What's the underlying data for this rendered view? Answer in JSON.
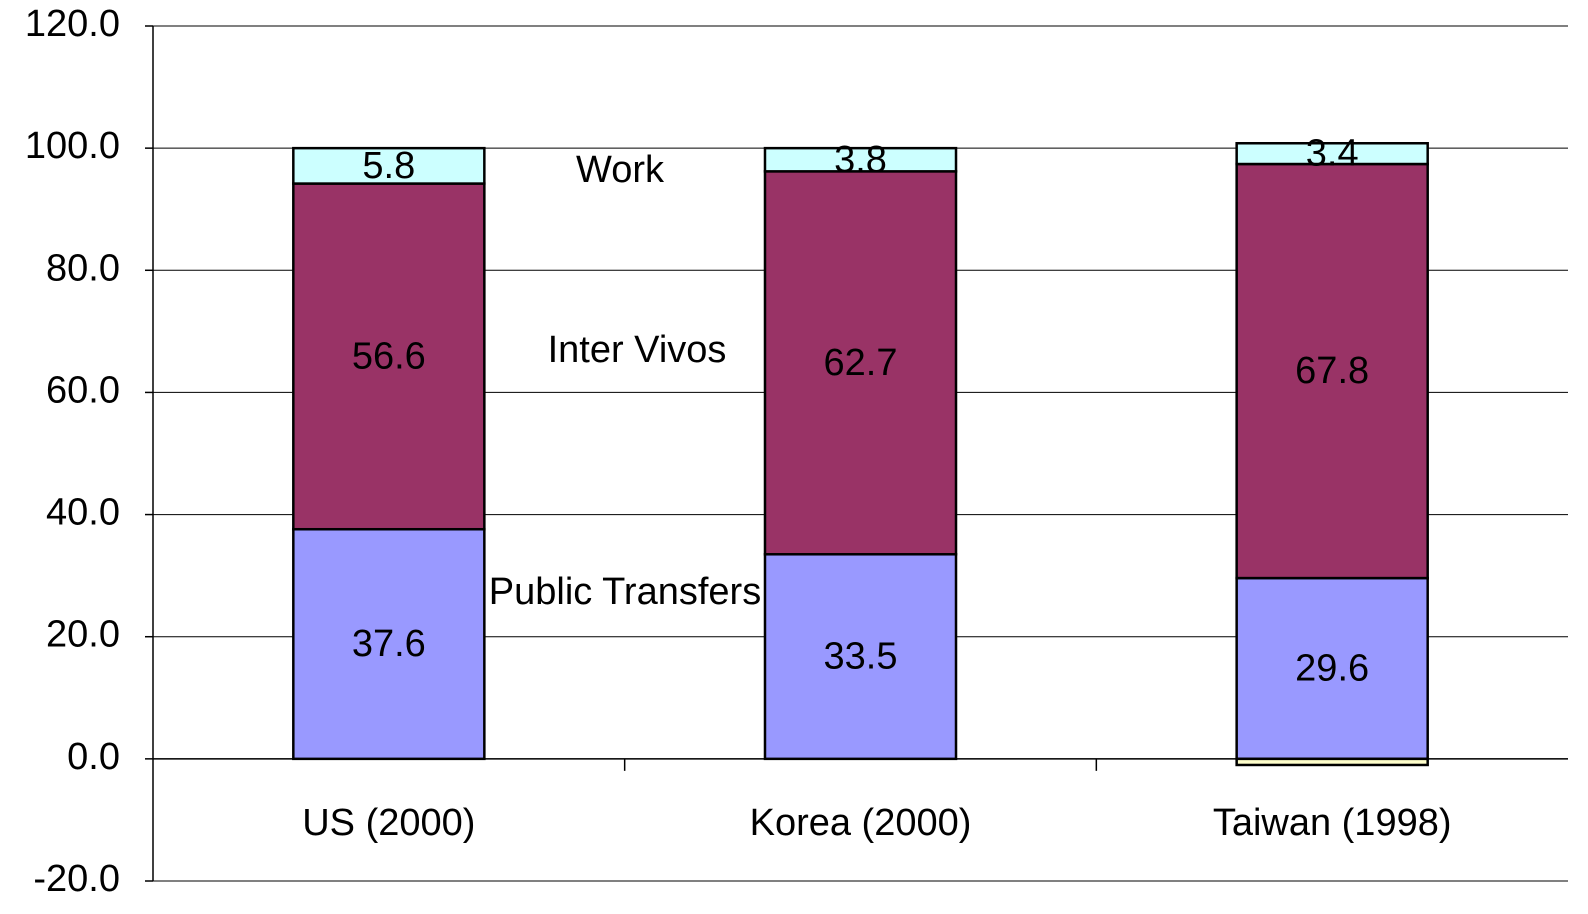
{
  "chart_data": {
    "type": "stacked-bar",
    "categories": [
      "US (2000)",
      "Korea (2000)",
      "Taiwan (1998)"
    ],
    "series": [
      {
        "name": "Public Transfers",
        "color": "#9999ff",
        "values": [
          37.6,
          33.5,
          29.6
        ]
      },
      {
        "name": "Inter Vivos",
        "color": "#993366",
        "values": [
          56.6,
          62.7,
          67.8
        ]
      },
      {
        "name": "Work",
        "color": "#ccffff",
        "values": [
          5.8,
          3.8,
          3.4
        ]
      },
      {
        "color": "#ffffcc",
        "values": [
          null,
          null,
          -1.0
        ]
      }
    ],
    "ylim": [
      -20,
      120
    ],
    "yticks": [
      {
        "value": -20,
        "label": "-20.0"
      },
      {
        "value": 0,
        "label": "0.0"
      },
      {
        "value": 20,
        "label": "20.0"
      },
      {
        "value": 40,
        "label": "40.0"
      },
      {
        "value": 60,
        "label": "60.0"
      },
      {
        "value": 80,
        "label": "80.0"
      },
      {
        "value": 100,
        "label": "100.0"
      },
      {
        "value": 120,
        "label": "120.0"
      }
    ],
    "grid": true
  }
}
